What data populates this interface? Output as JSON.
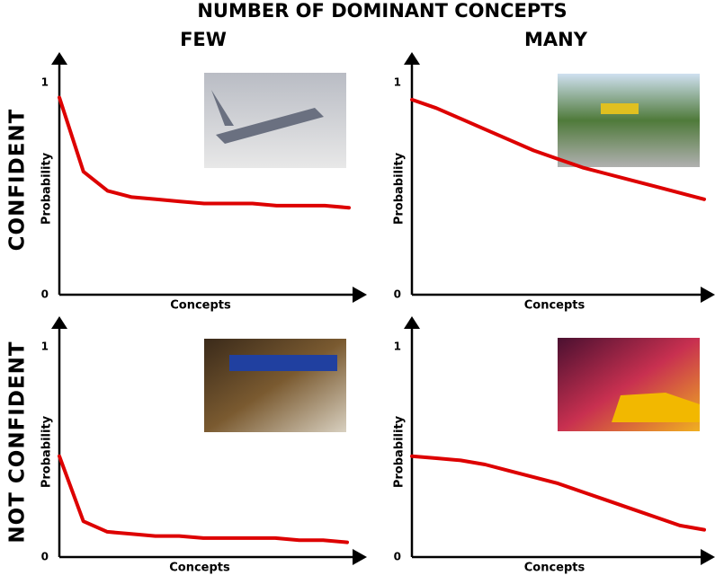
{
  "figure": {
    "title": "NUMBER OF DOMINANT CONCEPTS",
    "columns": [
      "FEW",
      "MANY"
    ],
    "rows": [
      "CONFIDENT",
      "NOT CONFIDENT"
    ]
  },
  "chart_data": [
    {
      "type": "line",
      "x_label": "Concepts",
      "y_label": "Probability",
      "ylim": [
        0,
        1
      ],
      "yticks": [
        0,
        1
      ],
      "color": "#dd0000",
      "categories": [
        null,
        null,
        null,
        null,
        null,
        null,
        null,
        null,
        null,
        null,
        null,
        null,
        null
      ],
      "values": [
        0.93,
        0.58,
        0.49,
        0.46,
        0.45,
        0.44,
        0.43,
        0.43,
        0.43,
        0.42,
        0.42,
        0.42,
        0.41
      ]
    },
    {
      "type": "line",
      "x_label": "Concepts",
      "y_label": "Probability",
      "ylim": [
        0,
        1
      ],
      "yticks": [
        0,
        1
      ],
      "color": "#dd0000",
      "categories": [
        null,
        null,
        null,
        null,
        null,
        null,
        null,
        null,
        null,
        null,
        null,
        null,
        null
      ],
      "values": [
        0.92,
        0.88,
        0.83,
        0.78,
        0.73,
        0.68,
        0.64,
        0.6,
        0.57,
        0.54,
        0.51,
        0.48,
        0.45
      ]
    },
    {
      "type": "line",
      "x_label": "Concepts",
      "y_label": "Probability",
      "ylim": [
        0,
        1
      ],
      "yticks": [
        0,
        1
      ],
      "color": "#dd0000",
      "categories": [
        null,
        null,
        null,
        null,
        null,
        null,
        null,
        null,
        null,
        null,
        null,
        null,
        null
      ],
      "values": [
        0.48,
        0.17,
        0.12,
        0.11,
        0.1,
        0.1,
        0.09,
        0.09,
        0.09,
        0.09,
        0.08,
        0.08,
        0.07
      ]
    },
    {
      "type": "line",
      "x_label": "Concepts",
      "y_label": "Probability",
      "ylim": [
        0,
        1
      ],
      "yticks": [
        0,
        1
      ],
      "color": "#dd0000",
      "categories": [
        null,
        null,
        null,
        null,
        null,
        null,
        null,
        null,
        null,
        null,
        null,
        null,
        null
      ],
      "values": [
        0.48,
        0.47,
        0.46,
        0.44,
        0.41,
        0.38,
        0.35,
        0.31,
        0.27,
        0.23,
        0.19,
        0.15,
        0.13
      ]
    }
  ]
}
